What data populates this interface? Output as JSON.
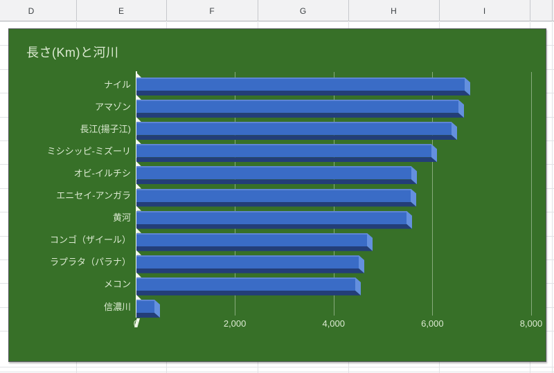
{
  "sheet": {
    "columns": [
      "D",
      "E",
      "F",
      "G",
      "H",
      "I"
    ]
  },
  "chart": {
    "title": "長さ(Km)と河川",
    "colors": {
      "background": "#377028",
      "bar_face": "#3a6cc6",
      "bar_highlight": "#5e85d4",
      "bar_side": "#6490de",
      "bar_bottom": "#233e78",
      "text": "#dcead2",
      "gridline": "rgba(234,244,228,0.45)",
      "axis_wall": "#f4f8ee"
    }
  },
  "chart_data": {
    "type": "bar",
    "orientation": "horizontal",
    "style": "3d",
    "title": "長さ(Km)と河川",
    "categories": [
      "ナイル",
      "アマゾン",
      "長江(揚子江)",
      "ミシシッピ-ミズーリ",
      "オビ-イルチシ",
      "エニセイ-アンガラ",
      "黄河",
      "コンゴ（ザイール）",
      "ラプラタ（パラナ）",
      "メコン",
      "信濃川"
    ],
    "values": [
      6650,
      6516,
      6380,
      5969,
      5568,
      5550,
      5464,
      4667,
      4500,
      4425,
      367
    ],
    "xlabel": "",
    "ylabel": "",
    "xlim": [
      0,
      8000
    ],
    "xticks": [
      0,
      2000,
      4000,
      6000,
      8000
    ],
    "xtick_labels": [
      "0",
      "2,000",
      "4,000",
      "6,000",
      "8,000"
    ],
    "grid": true,
    "legend": "none"
  }
}
